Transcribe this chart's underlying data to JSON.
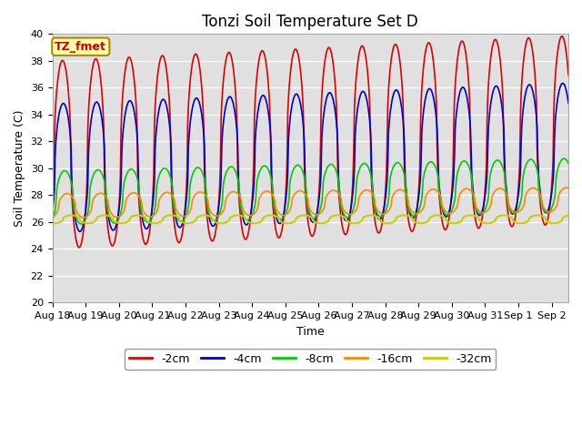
{
  "title": "Tonzi Soil Temperature Set D",
  "xlabel": "Time",
  "ylabel": "Soil Temperature (C)",
  "ylim": [
    20,
    40
  ],
  "xlim_days": [
    0,
    15.5
  ],
  "xtick_labels": [
    "Aug 18",
    "Aug 19",
    "Aug 20",
    "Aug 21",
    "Aug 22",
    "Aug 23",
    "Aug 24",
    "Aug 25",
    "Aug 26",
    "Aug 27",
    "Aug 28",
    "Aug 29",
    "Aug 30",
    "Aug 31",
    "Sep 1",
    "Sep 2"
  ],
  "lines": {
    "-2cm": {
      "color": "#dd0000",
      "lw": 1.2,
      "base": 31.0,
      "amp": 7.0,
      "phase": 0.35,
      "trend_amp": 0.12,
      "trend_base": 0.0
    },
    "-4cm": {
      "color": "#0000cc",
      "lw": 1.2,
      "base": 30.0,
      "amp": 4.8,
      "phase": 0.5,
      "trend_amp": 0.1,
      "trend_base": 0.0
    },
    "-8cm": {
      "color": "#00cc00",
      "lw": 1.2,
      "base": 27.8,
      "amp": 2.0,
      "phase": 0.75,
      "trend_amp": 0.06,
      "trend_base": 0.0
    },
    "-16cm": {
      "color": "#ff8800",
      "lw": 1.2,
      "base": 27.2,
      "amp": 0.9,
      "phase": 1.2,
      "trend_amp": 0.03,
      "trend_base": 0.0
    },
    "-32cm": {
      "color": "#cccc00",
      "lw": 1.5,
      "base": 26.2,
      "amp": 0.3,
      "phase": 2.0,
      "trend_amp": 0.0,
      "trend_base": 0.0
    }
  },
  "legend_order": [
    "-2cm",
    "-4cm",
    "-8cm",
    "-16cm",
    "-32cm"
  ],
  "annotation_text": "TZ_fmet",
  "annotation_color": "#cc0000",
  "annotation_bg": "#ffffaa",
  "annotation_border": "#aa8800",
  "bg_color": "#e0e0e0",
  "fig_bg": "#ffffff",
  "title_fontsize": 12,
  "axis_fontsize": 9,
  "tick_fontsize": 8
}
